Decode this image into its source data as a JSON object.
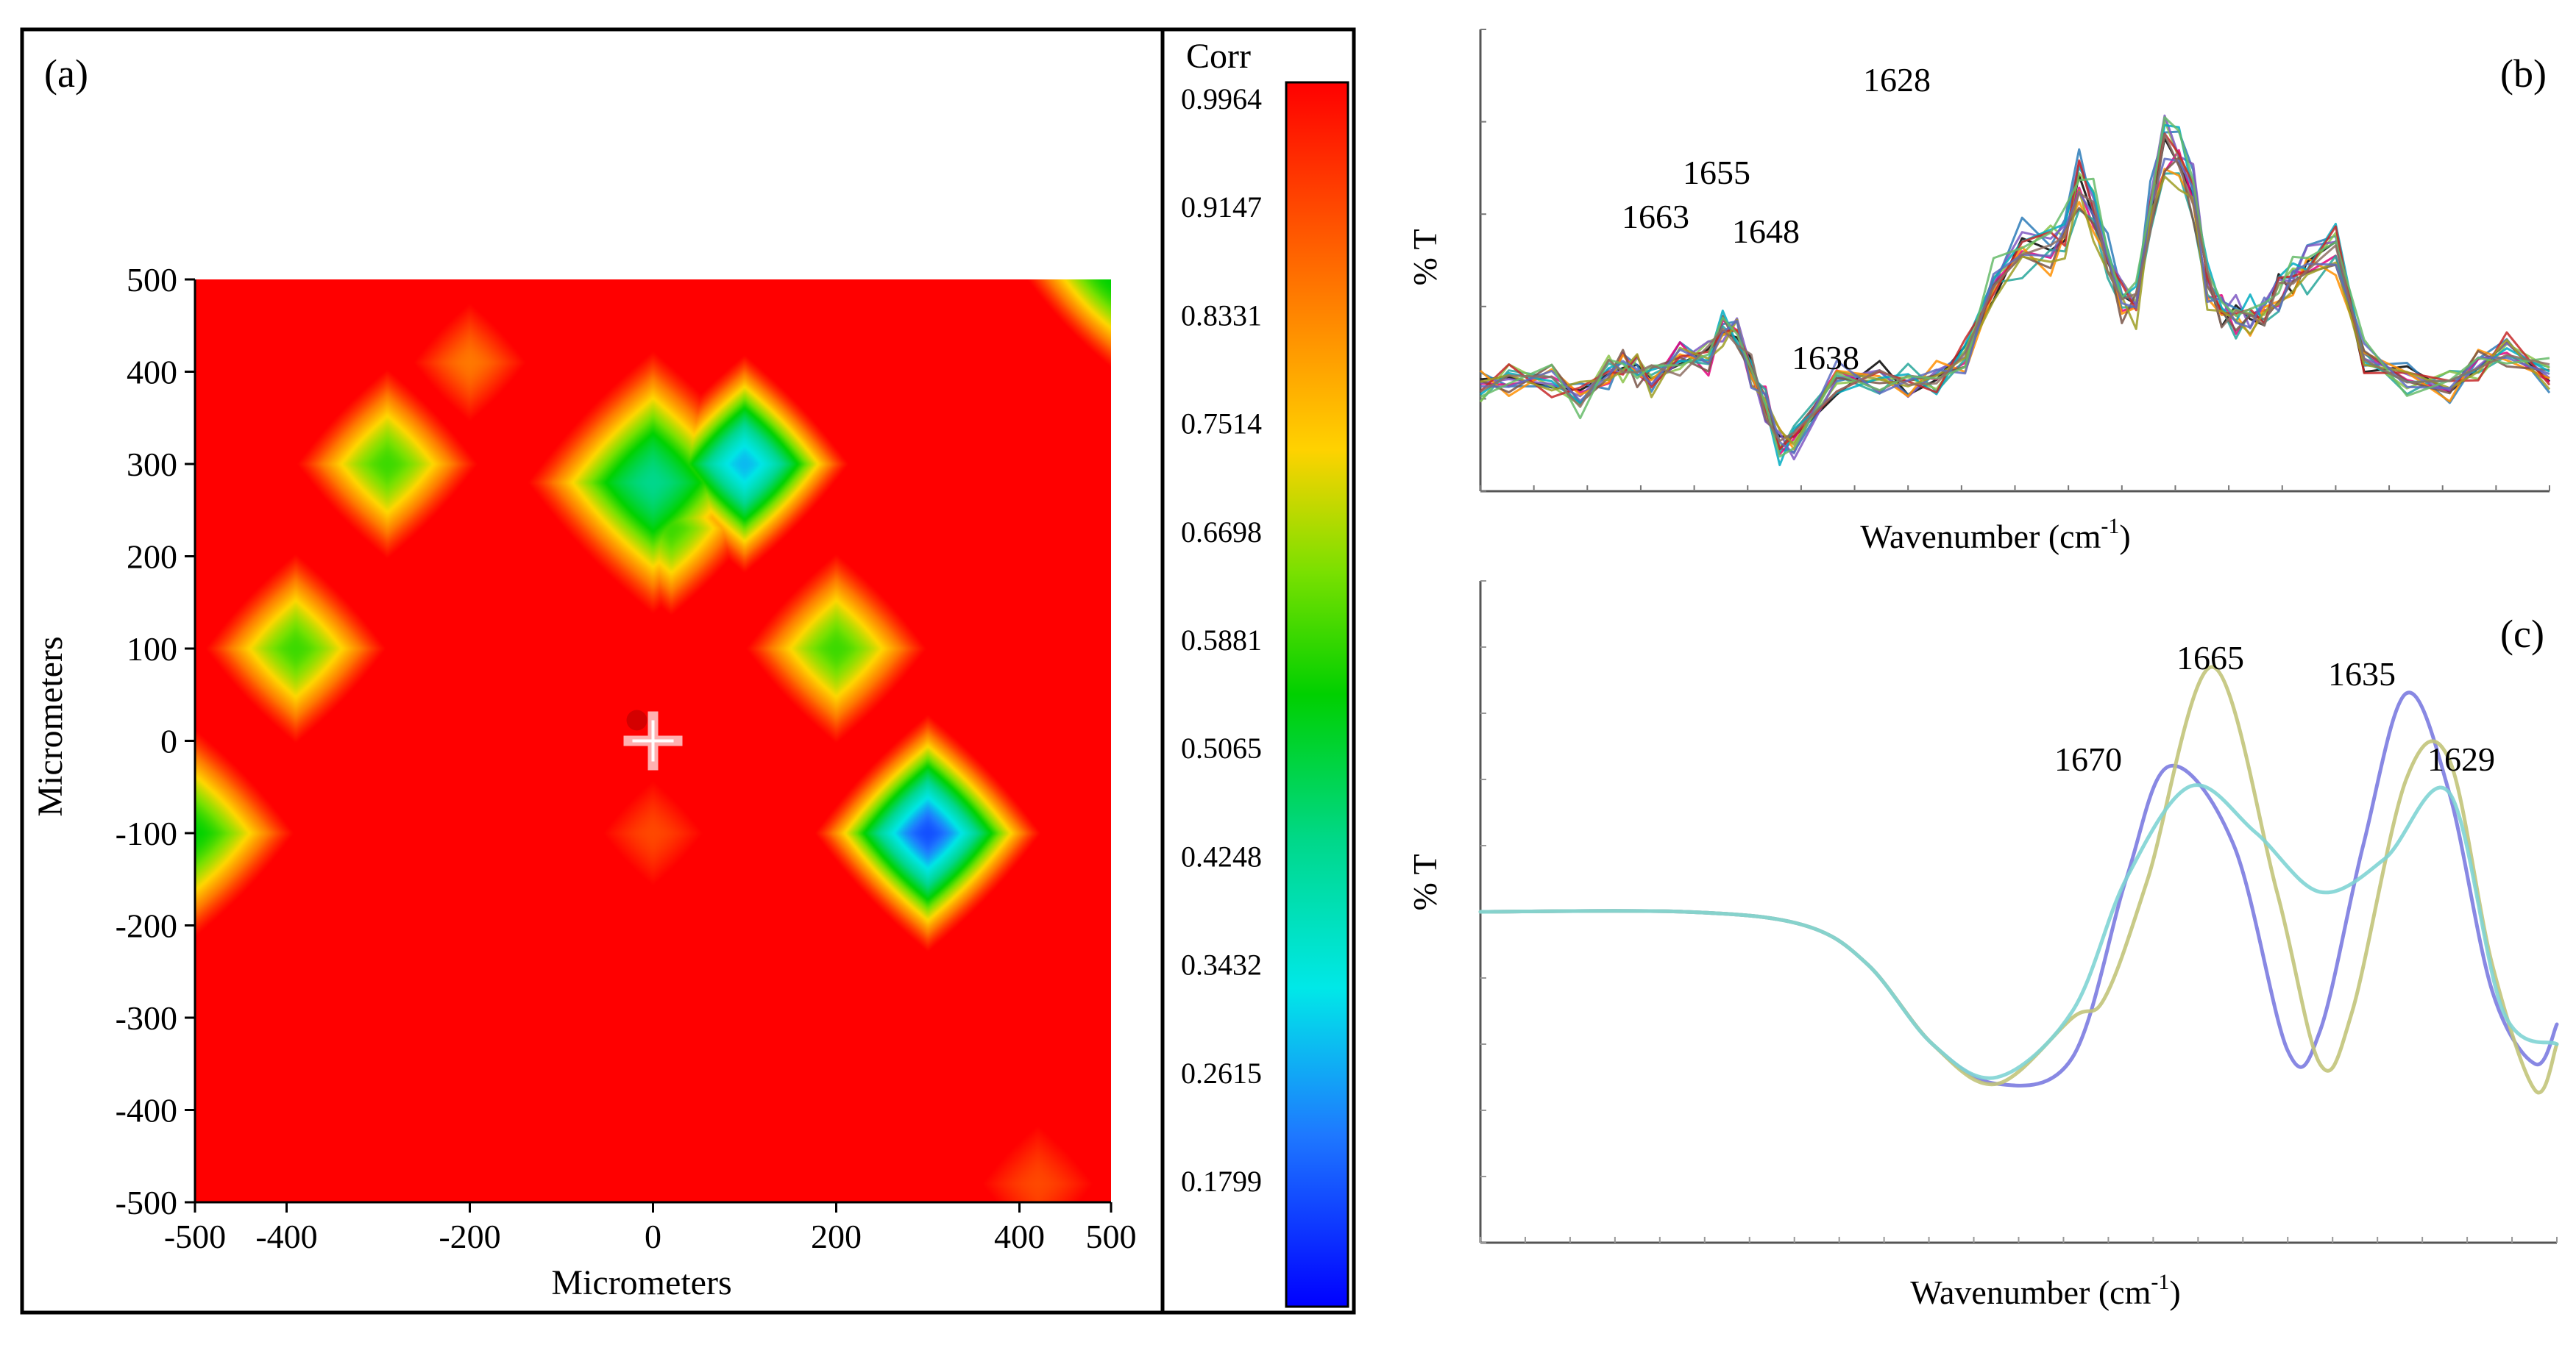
{
  "chart_data": [
    {
      "panel_label": "(a)",
      "type": "heatmap",
      "xlabel": "Micrometers",
      "ylabel": "Micrometers",
      "xlim": [
        -500,
        500
      ],
      "ylim": [
        -500,
        500
      ],
      "x_ticks": [
        "-500",
        "-400",
        "-200",
        "0",
        "200",
        "400",
        "500"
      ],
      "x_tick_values": [
        -500,
        -400,
        -200,
        0,
        200,
        400,
        500
      ],
      "y_ticks": [
        "500",
        "400",
        "300",
        "200",
        "100",
        "0",
        "-100",
        "-200",
        "-300",
        "-400",
        "-500"
      ],
      "y_tick_values": [
        500,
        400,
        300,
        200,
        100,
        0,
        -100,
        -200,
        -300,
        -400,
        -500
      ],
      "colorbar": {
        "title": "Corr",
        "labels": [
          "0.9964",
          "0.9147",
          "0.8331",
          "0.7514",
          "0.6698",
          "0.5881",
          "0.5065",
          "0.4248",
          "0.3432",
          "0.2615",
          "0.1799"
        ],
        "min": 0.1,
        "max": 1.0
      },
      "background_value": 0.99,
      "features": [
        {
          "x": -290,
          "y": 300,
          "r": 120,
          "min": 0.62
        },
        {
          "x": -390,
          "y": 100,
          "r": 120,
          "min": 0.62
        },
        {
          "x": 200,
          "y": 100,
          "r": 120,
          "min": 0.62
        },
        {
          "x": 300,
          "y": -100,
          "r": 140,
          "min": 0.18
        },
        {
          "x": -500,
          "y": -100,
          "r": 130,
          "min": 0.58
        },
        {
          "x": 500,
          "y": 500,
          "r": 110,
          "min": 0.58
        },
        {
          "x": 0,
          "y": 280,
          "r": 160,
          "min": 0.45
        },
        {
          "x": 100,
          "y": 300,
          "r": 130,
          "min": 0.28
        },
        {
          "x": 20,
          "y": 230,
          "r": 110,
          "min": 0.62
        },
        {
          "x": -200,
          "y": 410,
          "r": 90,
          "min": 0.86
        },
        {
          "x": 0,
          "y": -100,
          "r": 90,
          "min": 0.9
        },
        {
          "x": 420,
          "y": -480,
          "r": 100,
          "min": 0.9
        }
      ],
      "marker": {
        "x": 0,
        "y": 0
      }
    },
    {
      "panel_label": "(b)",
      "type": "line",
      "xlabel": "Wavenumber (cm",
      "xlabel_sup": "-1",
      "ylabel": "% T",
      "xlim": [
        1740,
        1590
      ],
      "ylim": [
        0,
        1
      ],
      "x_direction": "descending",
      "annotations": [
        "1628",
        "1655",
        "1663",
        "1648",
        "1638"
      ],
      "series_count": 14,
      "base_x": [
        1740,
        1736,
        1730,
        1726,
        1722,
        1720,
        1718,
        1716,
        1712,
        1708,
        1706,
        1704,
        1702,
        1700,
        1698,
        1696,
        1690,
        1684,
        1680,
        1676,
        1672,
        1668,
        1664,
        1660,
        1658,
        1656,
        1654,
        1652,
        1650,
        1648,
        1646,
        1644,
        1642,
        1640,
        1638,
        1636,
        1634,
        1632,
        1630,
        1628,
        1626,
        1624,
        1620,
        1616,
        1610,
        1604,
        1600,
        1596,
        1590
      ],
      "base_y": [
        0.22,
        0.24,
        0.24,
        0.19,
        0.26,
        0.28,
        0.27,
        0.24,
        0.3,
        0.3,
        0.38,
        0.37,
        0.26,
        0.17,
        0.06,
        0.07,
        0.24,
        0.24,
        0.23,
        0.24,
        0.3,
        0.5,
        0.6,
        0.6,
        0.64,
        0.78,
        0.7,
        0.57,
        0.46,
        0.45,
        0.7,
        0.88,
        0.85,
        0.75,
        0.5,
        0.43,
        0.41,
        0.41,
        0.42,
        0.48,
        0.52,
        0.55,
        0.6,
        0.3,
        0.24,
        0.22,
        0.28,
        0.32,
        0.25
      ],
      "colors": [
        "#000000",
        "#2b7bb9",
        "#e4007c",
        "#26a69a",
        "#8bc34a",
        "#7e57c2",
        "#ff8f00",
        "#795548",
        "#00acc1",
        "#c62828",
        "#9e9d24",
        "#5c6bc0",
        "#66bb6a",
        "#8d6e63"
      ]
    },
    {
      "panel_label": "(c)",
      "type": "line",
      "xlabel": "Wavenumber (cm",
      "xlabel_sup": "-1",
      "ylabel": "% T",
      "xlim": [
        0,
        1
      ],
      "ylim": [
        0,
        1
      ],
      "annotations": [
        "1670",
        "1665",
        "1635",
        "1629"
      ],
      "series": [
        {
          "name": "purple",
          "color": "#7b7be0",
          "x": [
            0,
            0.19,
            0.3,
            0.36,
            0.42,
            0.48,
            0.55,
            0.6,
            0.64,
            0.7,
            0.75,
            0.78,
            0.82,
            0.86,
            0.9,
            0.94,
            0.98,
            1
          ],
          "y": [
            0.5,
            0.5,
            0.48,
            0.42,
            0.3,
            0.24,
            0.28,
            0.55,
            0.72,
            0.6,
            0.29,
            0.32,
            0.6,
            0.83,
            0.68,
            0.38,
            0.27,
            0.33
          ]
        },
        {
          "name": "olive",
          "color": "#c2c47a",
          "x": [
            0,
            0.19,
            0.3,
            0.36,
            0.42,
            0.48,
            0.55,
            0.58,
            0.62,
            0.68,
            0.74,
            0.78,
            0.81,
            0.86,
            0.9,
            0.94,
            0.98,
            1
          ],
          "y": [
            0.5,
            0.5,
            0.48,
            0.42,
            0.3,
            0.24,
            0.34,
            0.37,
            0.55,
            0.87,
            0.53,
            0.27,
            0.35,
            0.7,
            0.73,
            0.42,
            0.23,
            0.3
          ]
        },
        {
          "name": "teal",
          "color": "#7fd4d4",
          "x": [
            0,
            0.19,
            0.3,
            0.36,
            0.42,
            0.48,
            0.55,
            0.6,
            0.66,
            0.72,
            0.78,
            0.84,
            0.9,
            0.95,
            1
          ],
          "y": [
            0.5,
            0.5,
            0.48,
            0.42,
            0.3,
            0.25,
            0.35,
            0.55,
            0.69,
            0.62,
            0.53,
            0.58,
            0.68,
            0.35,
            0.3
          ]
        }
      ]
    }
  ]
}
